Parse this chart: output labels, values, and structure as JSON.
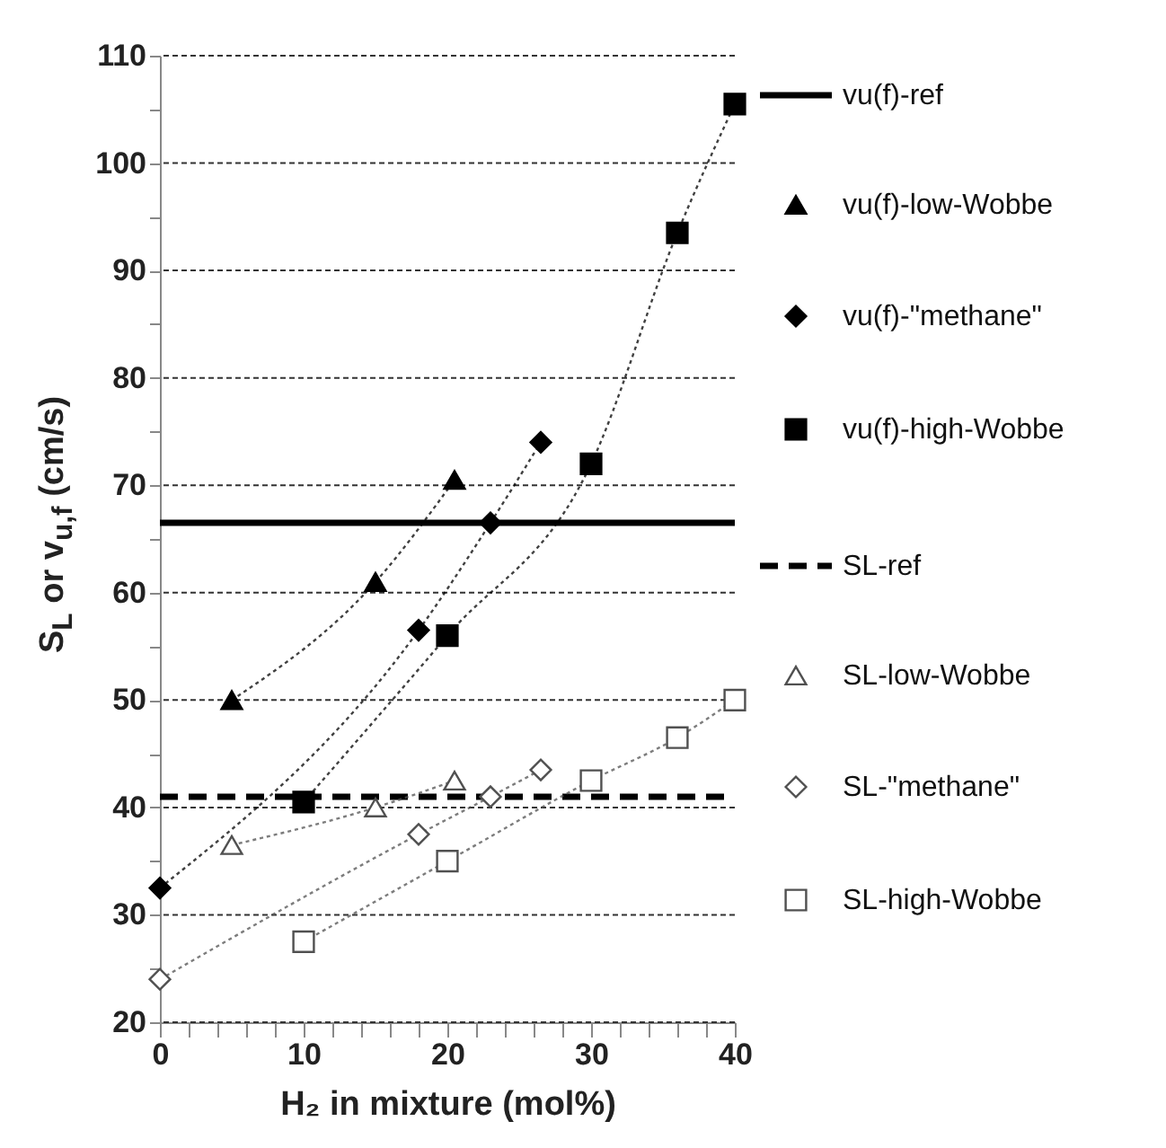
{
  "chart_data": {
    "type": "line",
    "xlabel": "H₂ in mixture  (mol%)",
    "ylabel": "S$_{L}$   or   v$_{u,f}$  (cm/s)",
    "xlim": [
      0,
      40
    ],
    "ylim": [
      20,
      110
    ],
    "xticks": [
      0,
      {
        "value": 2,
        "label": null
      },
      {
        "value": 4,
        "label": null
      },
      {
        "value": 6,
        "label": null
      },
      {
        "value": 8,
        "label": null
      },
      10,
      {
        "value": 12,
        "label": null
      },
      {
        "value": 14,
        "label": null
      },
      {
        "value": 16,
        "label": null
      },
      {
        "value": 18,
        "label": null
      },
      20,
      {
        "value": 22,
        "label": null
      },
      {
        "value": 24,
        "label": null
      },
      {
        "value": 26,
        "label": null
      },
      {
        "value": 28,
        "label": null
      },
      30,
      {
        "value": 32,
        "label": null
      },
      {
        "value": 34,
        "label": null
      },
      {
        "value": 36,
        "label": null
      },
      {
        "value": 38,
        "label": null
      },
      40
    ],
    "yticks": [
      20,
      {
        "value": 25,
        "label": null
      },
      30,
      {
        "value": 35,
        "label": null
      },
      40,
      {
        "value": 45,
        "label": null
      },
      50,
      {
        "value": 55,
        "label": null
      },
      60,
      {
        "value": 65,
        "label": null
      },
      70,
      {
        "value": 75,
        "label": null
      },
      80,
      {
        "value": 85,
        "label": null
      },
      90,
      {
        "value": 95,
        "label": null
      },
      100,
      {
        "value": 105,
        "label": null
      },
      110
    ],
    "grid": "y",
    "legend": "right",
    "series": [
      {
        "name": "vu(f)-ref",
        "type": "line",
        "color": "#000000",
        "x": [
          0,
          40
        ],
        "values": [
          66.5,
          66.5
        ],
        "line_style": "solid",
        "marker": "none"
      },
      {
        "name": "vu(f)-low-Wobbe",
        "type": "line",
        "color": "#000000",
        "x": [
          5,
          15,
          20.5
        ],
        "values": [
          50,
          61,
          70.5
        ],
        "line_style": "dotted",
        "marker": "triangle"
      },
      {
        "name": "vu(f)-\"methane\"",
        "type": "line",
        "color": "#000000",
        "x": [
          0,
          18,
          23,
          26.5
        ],
        "values": [
          32.5,
          56.5,
          66.5,
          74
        ],
        "line_style": "dotted",
        "marker": "diamond"
      },
      {
        "name": "vu(f)-high-Wobbe",
        "type": "line",
        "color": "#000000",
        "x": [
          10,
          20,
          30,
          36,
          40
        ],
        "values": [
          40.5,
          56,
          72,
          93.5,
          105.5
        ],
        "line_style": "dotted",
        "marker": "square"
      },
      {
        "name": "SL-ref",
        "type": "line",
        "color": "#000000",
        "x": [
          0,
          40
        ],
        "values": [
          41,
          41
        ],
        "line_style": "dashed",
        "marker": "none"
      },
      {
        "name": "SL-low-Wobbe",
        "type": "line",
        "color": "#505050",
        "x": [
          5,
          15,
          20.5
        ],
        "values": [
          36.5,
          40,
          42.5
        ],
        "line_style": "dotted",
        "marker": "triangle"
      },
      {
        "name": "SL-\"methane\"",
        "type": "line",
        "color": "#505050",
        "x": [
          0,
          18,
          23,
          26.5
        ],
        "values": [
          24,
          37.5,
          41,
          43.5
        ],
        "line_style": "dotted",
        "marker": "diamond"
      },
      {
        "name": "SL-high-Wobbe",
        "type": "line",
        "color": "#505050",
        "x": [
          10,
          20,
          30,
          36,
          40
        ],
        "values": [
          27.5,
          35,
          42.5,
          46.5,
          50
        ],
        "line_style": "dotted",
        "marker": "square"
      }
    ]
  }
}
